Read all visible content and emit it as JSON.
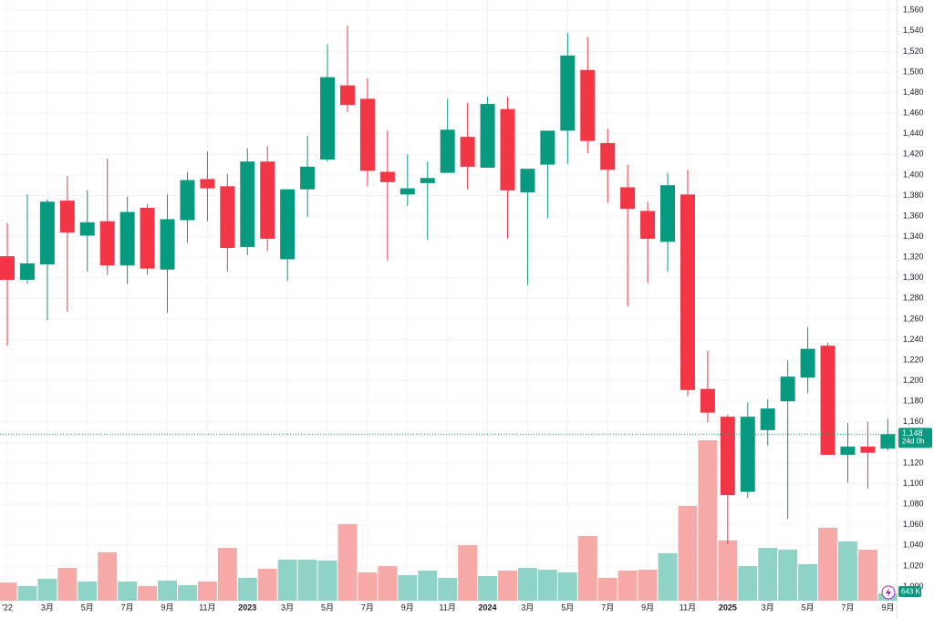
{
  "chart_data": {
    "type": "candlestick",
    "categories": [
      "'22",
      null,
      "3月",
      null,
      "5月",
      null,
      "7月",
      null,
      "9月",
      null,
      "11月",
      null,
      "2023",
      null,
      "3月",
      null,
      "5月",
      null,
      "7月",
      null,
      "9月",
      null,
      "11月",
      null,
      "2024",
      null,
      "3月",
      null,
      "5月",
      null,
      "7月",
      null,
      "9月",
      null,
      "11月",
      null,
      "2025",
      null,
      "3月",
      null,
      "5月",
      null,
      "7月",
      null,
      "9月"
    ],
    "open": [
      1321,
      1298,
      1313,
      1375,
      1341,
      1355,
      1312,
      1368,
      1308,
      1356,
      1396,
      1389,
      1330,
      1413,
      1318,
      1386,
      1415,
      1487,
      1474,
      1403,
      1381,
      1392,
      1402,
      1437,
      1407,
      1464,
      1383,
      1410,
      1443,
      1502,
      1431,
      1388,
      1365,
      1335,
      1381,
      1192,
      1165,
      1092,
      1152,
      1180,
      1203,
      1234,
      1128,
      1136,
      1134
    ],
    "high": [
      1353,
      1381,
      1376,
      1399,
      1385,
      1416,
      1379,
      1372,
      1381,
      1403,
      1423,
      1401,
      1426,
      1428,
      1386,
      1438,
      1527,
      1545,
      1494,
      1443,
      1420,
      1413,
      1474,
      1470,
      1476,
      1476,
      1406,
      1443,
      1538,
      1534,
      1445,
      1410,
      1374,
      1402,
      1405,
      1229,
      1167,
      1179,
      1182,
      1220,
      1252,
      1237,
      1159,
      1160,
      1163
    ],
    "low": [
      1234,
      1294,
      1259,
      1267,
      1306,
      1303,
      1294,
      1303,
      1266,
      1334,
      1355,
      1306,
      1322,
      1326,
      1297,
      1359,
      1413,
      1461,
      1389,
      1317,
      1370,
      1337,
      1402,
      1386,
      1407,
      1338,
      1293,
      1358,
      1411,
      1421,
      1373,
      1272,
      1295,
      1306,
      1185,
      1160,
      1041,
      1086,
      1137,
      1066,
      1188,
      1128,
      1101,
      1095,
      1132
    ],
    "close": [
      1298,
      1314,
      1374,
      1344,
      1354,
      1312,
      1364,
      1309,
      1357,
      1395,
      1387,
      1329,
      1413,
      1338,
      1386,
      1408,
      1495,
      1468,
      1404,
      1393,
      1387,
      1397,
      1444,
      1408,
      1469,
      1385,
      1406,
      1443,
      1516,
      1433,
      1405,
      1367,
      1338,
      1390,
      1191,
      1169,
      1089,
      1165,
      1173,
      1204,
      1231,
      1128,
      1136,
      1130,
      1148
    ],
    "volume": {
      "values": [
        1600,
        1290,
        1930,
        2890,
        1690,
        4260,
        1690,
        1290,
        1770,
        1370,
        1690,
        4660,
        2010,
        2810,
        3620,
        3620,
        3540,
        6750,
        2490,
        3050,
        2250,
        2650,
        2010,
        4900,
        2170,
        2650,
        2890,
        2730,
        2490,
        5710,
        2010,
        2650,
        2730,
        4180,
        8360,
        14150,
        5310,
        3050,
        4660,
        4500,
        3220,
        6430,
        5230,
        4500,
        643
      ],
      "value_labels": [
        null,
        null,
        null,
        null,
        null,
        null,
        null,
        null,
        null,
        null,
        null,
        null,
        null,
        null,
        null,
        null,
        null,
        null,
        null,
        null,
        null,
        null,
        null,
        null,
        null,
        null,
        null,
        null,
        null,
        null,
        null,
        null,
        null,
        null,
        null,
        null,
        null,
        null,
        null,
        null,
        null,
        null,
        null,
        null,
        "643 K"
      ],
      "up_color": "#8fd3c7",
      "down_color": "#f7a9a7"
    },
    "up_color": "#089981",
    "down_color": "#f23645",
    "last_price": {
      "value": 1148,
      "label": "1,148",
      "countdown": "24d 0h"
    },
    "ylim": [
      988,
      1570
    ],
    "yticks": [
      {
        "value": 1000,
        "label": "1,000"
      },
      {
        "value": 1020,
        "label": "1,020"
      },
      {
        "value": 1040,
        "label": "1,040"
      },
      {
        "value": 1060,
        "label": "1,060"
      },
      {
        "value": 1080,
        "label": "1,080"
      },
      {
        "value": 1100,
        "label": "1,100"
      },
      {
        "value": 1120,
        "label": "1,120"
      },
      {
        "value": 1140,
        "label": "1,140"
      },
      {
        "value": 1160,
        "label": "1,160"
      },
      {
        "value": 1180,
        "label": "1,180"
      },
      {
        "value": 1200,
        "label": "1,200"
      },
      {
        "value": 1220,
        "label": "1,220"
      },
      {
        "value": 1240,
        "label": "1,240"
      },
      {
        "value": 1260,
        "label": "1,260"
      },
      {
        "value": 1280,
        "label": "1,280"
      },
      {
        "value": 1300,
        "label": "1,300"
      },
      {
        "value": 1320,
        "label": "1,320"
      },
      {
        "value": 1340,
        "label": "1,340"
      },
      {
        "value": 1360,
        "label": "1,360"
      },
      {
        "value": 1380,
        "label": "1,380"
      },
      {
        "value": 1400,
        "label": "1,400"
      },
      {
        "value": 1420,
        "label": "1,420"
      },
      {
        "value": 1440,
        "label": "1,440"
      },
      {
        "value": 1460,
        "label": "1,460"
      },
      {
        "value": 1480,
        "label": "1,480"
      },
      {
        "value": 1500,
        "label": "1,500"
      },
      {
        "value": 1520,
        "label": "1,520"
      },
      {
        "value": 1540,
        "label": "1,540"
      },
      {
        "value": 1560,
        "label": "1,560"
      }
    ],
    "grid": true
  }
}
